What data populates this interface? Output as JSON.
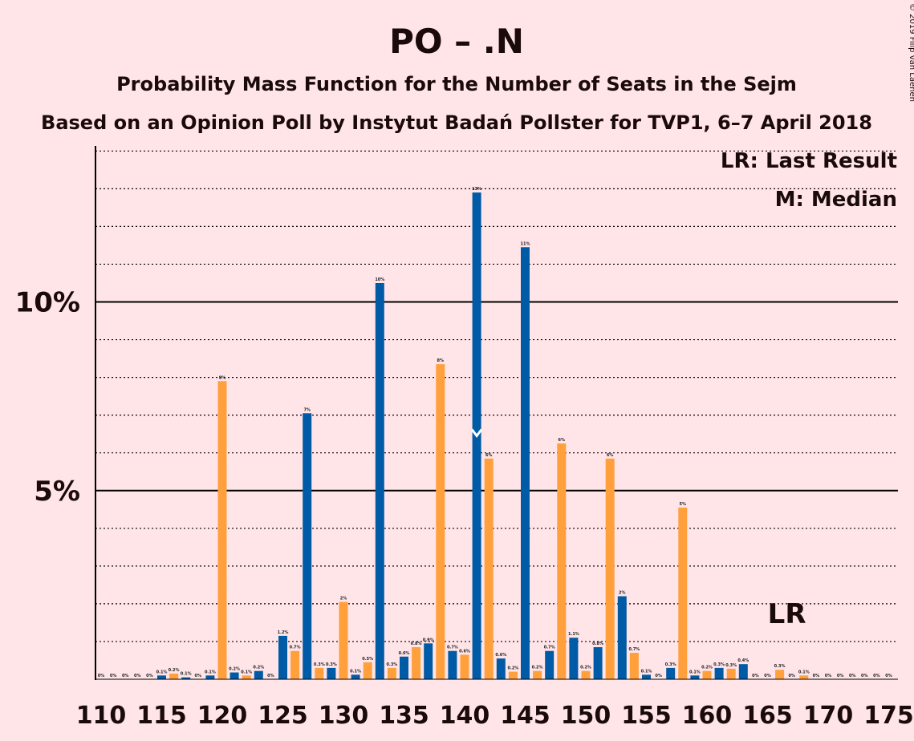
{
  "header": {
    "title": "PO – .N",
    "subtitle": "Probability Mass Function for the Number of Seats in the Sejm",
    "source": "Based on an Opinion Poll by Instytut Badań Pollster for TVP1, 6–7 April 2018",
    "copyright": "© 2019 Filip van Laenen"
  },
  "legend": {
    "last_result": "LR: Last Result",
    "median": "M: Median"
  },
  "markers": {
    "last_result_label": "LR",
    "last_result_seat": 166,
    "median_seat": 141
  },
  "colors": {
    "background": "#FFE4E8",
    "blue": "#005BA6",
    "orange": "#FFA03C",
    "text": "#1a0a0a"
  },
  "chart_data": {
    "type": "bar",
    "xlabel": "",
    "ylabel": "",
    "x_range": [
      110,
      175
    ],
    "xticks": [
      "110",
      "115",
      "120",
      "125",
      "130",
      "135",
      "140",
      "145",
      "150",
      "155",
      "160",
      "165",
      "170",
      "175"
    ],
    "yticks": [
      "5%",
      "10%"
    ],
    "ylim": [
      0,
      14
    ],
    "gridlines": "dotted every 1%, solid at 5% and 10%",
    "legend_position": "top-right",
    "x": [
      110,
      111,
      112,
      113,
      114,
      115,
      116,
      117,
      118,
      119,
      120,
      121,
      122,
      123,
      124,
      125,
      126,
      127,
      128,
      129,
      130,
      131,
      132,
      133,
      134,
      135,
      136,
      137,
      138,
      139,
      140,
      141,
      142,
      143,
      144,
      145,
      146,
      147,
      148,
      149,
      150,
      151,
      152,
      153,
      154,
      155,
      156,
      157,
      158,
      159,
      160,
      161,
      162,
      163,
      164,
      165,
      166,
      167,
      168,
      169,
      170,
      171,
      172,
      173,
      174,
      175
    ],
    "values": [
      0,
      0,
      0,
      0,
      0,
      0.1,
      0.15,
      0.05,
      0,
      0.1,
      7.9,
      0.18,
      0.1,
      0.22,
      0,
      1.15,
      0.75,
      7.05,
      0.3,
      0.3,
      2.05,
      0.12,
      0.45,
      10.5,
      0.3,
      0.6,
      0.85,
      0.95,
      8.35,
      0.75,
      0.65,
      12.9,
      5.85,
      0.55,
      0.2,
      11.45,
      0.22,
      0.75,
      6.25,
      1.1,
      0.22,
      0.85,
      5.85,
      2.2,
      0.7,
      0.12,
      0,
      0.3,
      4.55,
      0.1,
      0.22,
      0.3,
      0.28,
      0.4,
      0,
      0,
      0.25,
      0,
      0.1,
      0,
      0,
      0,
      0,
      0,
      0,
      0
    ],
    "labels": [
      "0%",
      "0%",
      "0%",
      "0%",
      "0%",
      "0.1%",
      "0.2%",
      "0.1%",
      "0%",
      "0.1%",
      "8%",
      "0.2%",
      "0.1%",
      "0.2%",
      "0%",
      "1.2%",
      "0.7%",
      "7%",
      "0.3%",
      "0.3%",
      "2%",
      "0.1%",
      "0.5%",
      "10%",
      "0.3%",
      "0.6%",
      "0.8%",
      "0.9%",
      "8%",
      "0.7%",
      "0.6%",
      "13%",
      "6%",
      "0.6%",
      "0.2%",
      "11%",
      "0.2%",
      "0.7%",
      "6%",
      "1.1%",
      "0.2%",
      "0.8%",
      "6%",
      "2%",
      "0.7%",
      "0.1%",
      "0%",
      "0.3%",
      "5%",
      "0.1%",
      "0.2%",
      "0.3%",
      "0.3%",
      "0.4%",
      "0%",
      "0%",
      "0.3%",
      "0%",
      "0.1%",
      "0%",
      "0%",
      "0%",
      "0%",
      "0%",
      "0%",
      "0%"
    ],
    "bar_colors": [
      "blue",
      "blue",
      "blue",
      "blue",
      "blue",
      "blue",
      "orange",
      "blue",
      "blue",
      "blue",
      "orange",
      "blue",
      "orange",
      "blue",
      "blue",
      "blue",
      "orange",
      "blue",
      "orange",
      "blue",
      "orange",
      "blue",
      "orange",
      "blue",
      "orange",
      "blue",
      "orange",
      "blue",
      "orange",
      "blue",
      "orange",
      "blue",
      "orange",
      "blue",
      "orange",
      "blue",
      "orange",
      "blue",
      "orange",
      "blue",
      "orange",
      "blue",
      "orange",
      "blue",
      "orange",
      "blue",
      "orange",
      "blue",
      "orange",
      "blue",
      "orange",
      "blue",
      "orange",
      "blue",
      "orange",
      "blue",
      "orange",
      "blue",
      "orange",
      "blue",
      "orange",
      "blue",
      "orange",
      "blue",
      "orange",
      "blue"
    ]
  }
}
